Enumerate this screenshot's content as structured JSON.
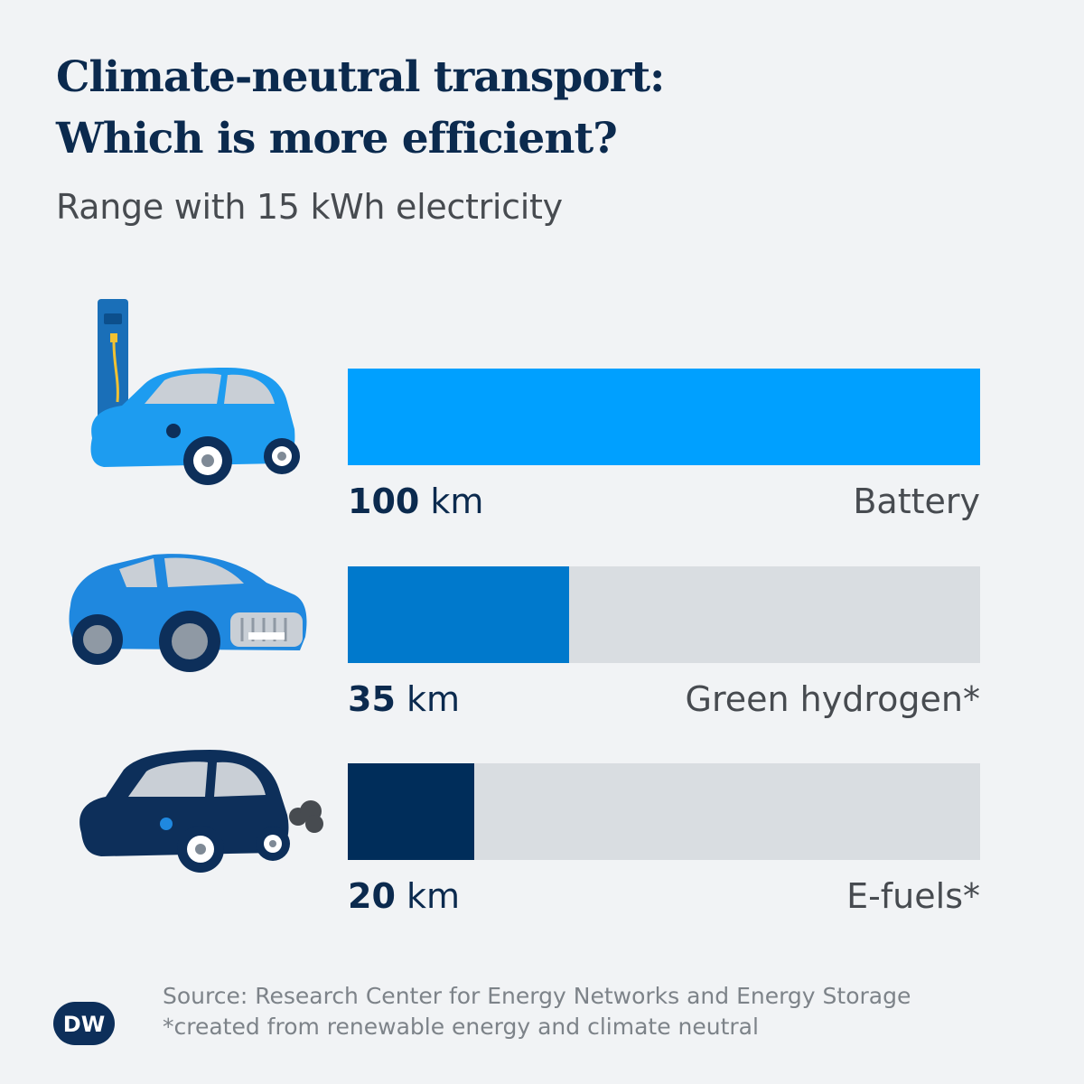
{
  "header": {
    "title_line1": "Climate-neutral transport:",
    "title_line2": "Which is more efficient?",
    "subtitle": "Range with 15 kWh electricity"
  },
  "chart_data": {
    "type": "bar",
    "orientation": "horizontal",
    "title": "Climate-neutral transport: Which is more efficient?",
    "subtitle": "Range with 15 kWh electricity",
    "categories": [
      "Battery",
      "Green hydrogen*",
      "E-fuels*"
    ],
    "values": [
      100,
      35,
      20
    ],
    "value_labels": [
      "100",
      "35",
      "20"
    ],
    "unit": "km",
    "xlim": [
      0,
      100
    ],
    "colors": [
      "#00a0ff",
      "#0079cc",
      "#002d5a"
    ],
    "track_color": "#d9dde1",
    "grid": false,
    "legend": "none"
  },
  "vehicles": [
    {
      "name": "battery-electric-car-icon",
      "color": "#1d9cf0"
    },
    {
      "name": "hydrogen-car-icon",
      "color": "#1f88df"
    },
    {
      "name": "efuel-car-icon",
      "color": "#0d2f5a"
    }
  ],
  "footer": {
    "source": "Source: Research Center for Energy Networks and Energy Storage",
    "note": "*created from renewable energy and climate neutral"
  },
  "logo": {
    "text": "DW"
  }
}
